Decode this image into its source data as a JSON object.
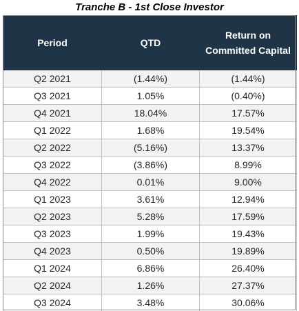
{
  "title": "Tranche B - 1st Close Investor",
  "columns": {
    "period": "Period",
    "qtd": "QTD",
    "return_line1": "Return on",
    "return_line2": "Committed Capital"
  },
  "rows": [
    {
      "period": "Q2 2021",
      "qtd": "(1.44%)",
      "return": "(1.44%)"
    },
    {
      "period": "Q3 2021",
      "qtd": "1.05%",
      "return": "(0.40%)"
    },
    {
      "period": "Q4 2021",
      "qtd": "18.04%",
      "return": "17.57%"
    },
    {
      "period": "Q1 2022",
      "qtd": "1.68%",
      "return": "19.54%"
    },
    {
      "period": "Q2 2022",
      "qtd": "(5.16%)",
      "return": "13.37%"
    },
    {
      "period": "Q3 2022",
      "qtd": "(3.86%)",
      "return": "8.99%"
    },
    {
      "period": "Q4 2022",
      "qtd": "0.01%",
      "return": "9.00%"
    },
    {
      "period": "Q1 2023",
      "qtd": "3.61%",
      "return": "12.94%"
    },
    {
      "period": "Q2 2023",
      "qtd": "5.28%",
      "return": "17.59%"
    },
    {
      "period": "Q3 2023",
      "qtd": "1.99%",
      "return": "19.43%"
    },
    {
      "period": "Q4 2023",
      "qtd": "0.50%",
      "return": "19.89%"
    },
    {
      "period": "Q1 2024",
      "qtd": "6.86%",
      "return": "26.40%"
    },
    {
      "period": "Q2 2024",
      "qtd": "1.26%",
      "return": "27.37%"
    },
    {
      "period": "Q3 2024",
      "qtd": "3.48%",
      "return": "30.06%"
    }
  ],
  "colors": {
    "header_bg": "#1f3447",
    "header_text": "#ffffff",
    "row_alt": "#f2f2f2",
    "grid": "#bfbfbf"
  }
}
